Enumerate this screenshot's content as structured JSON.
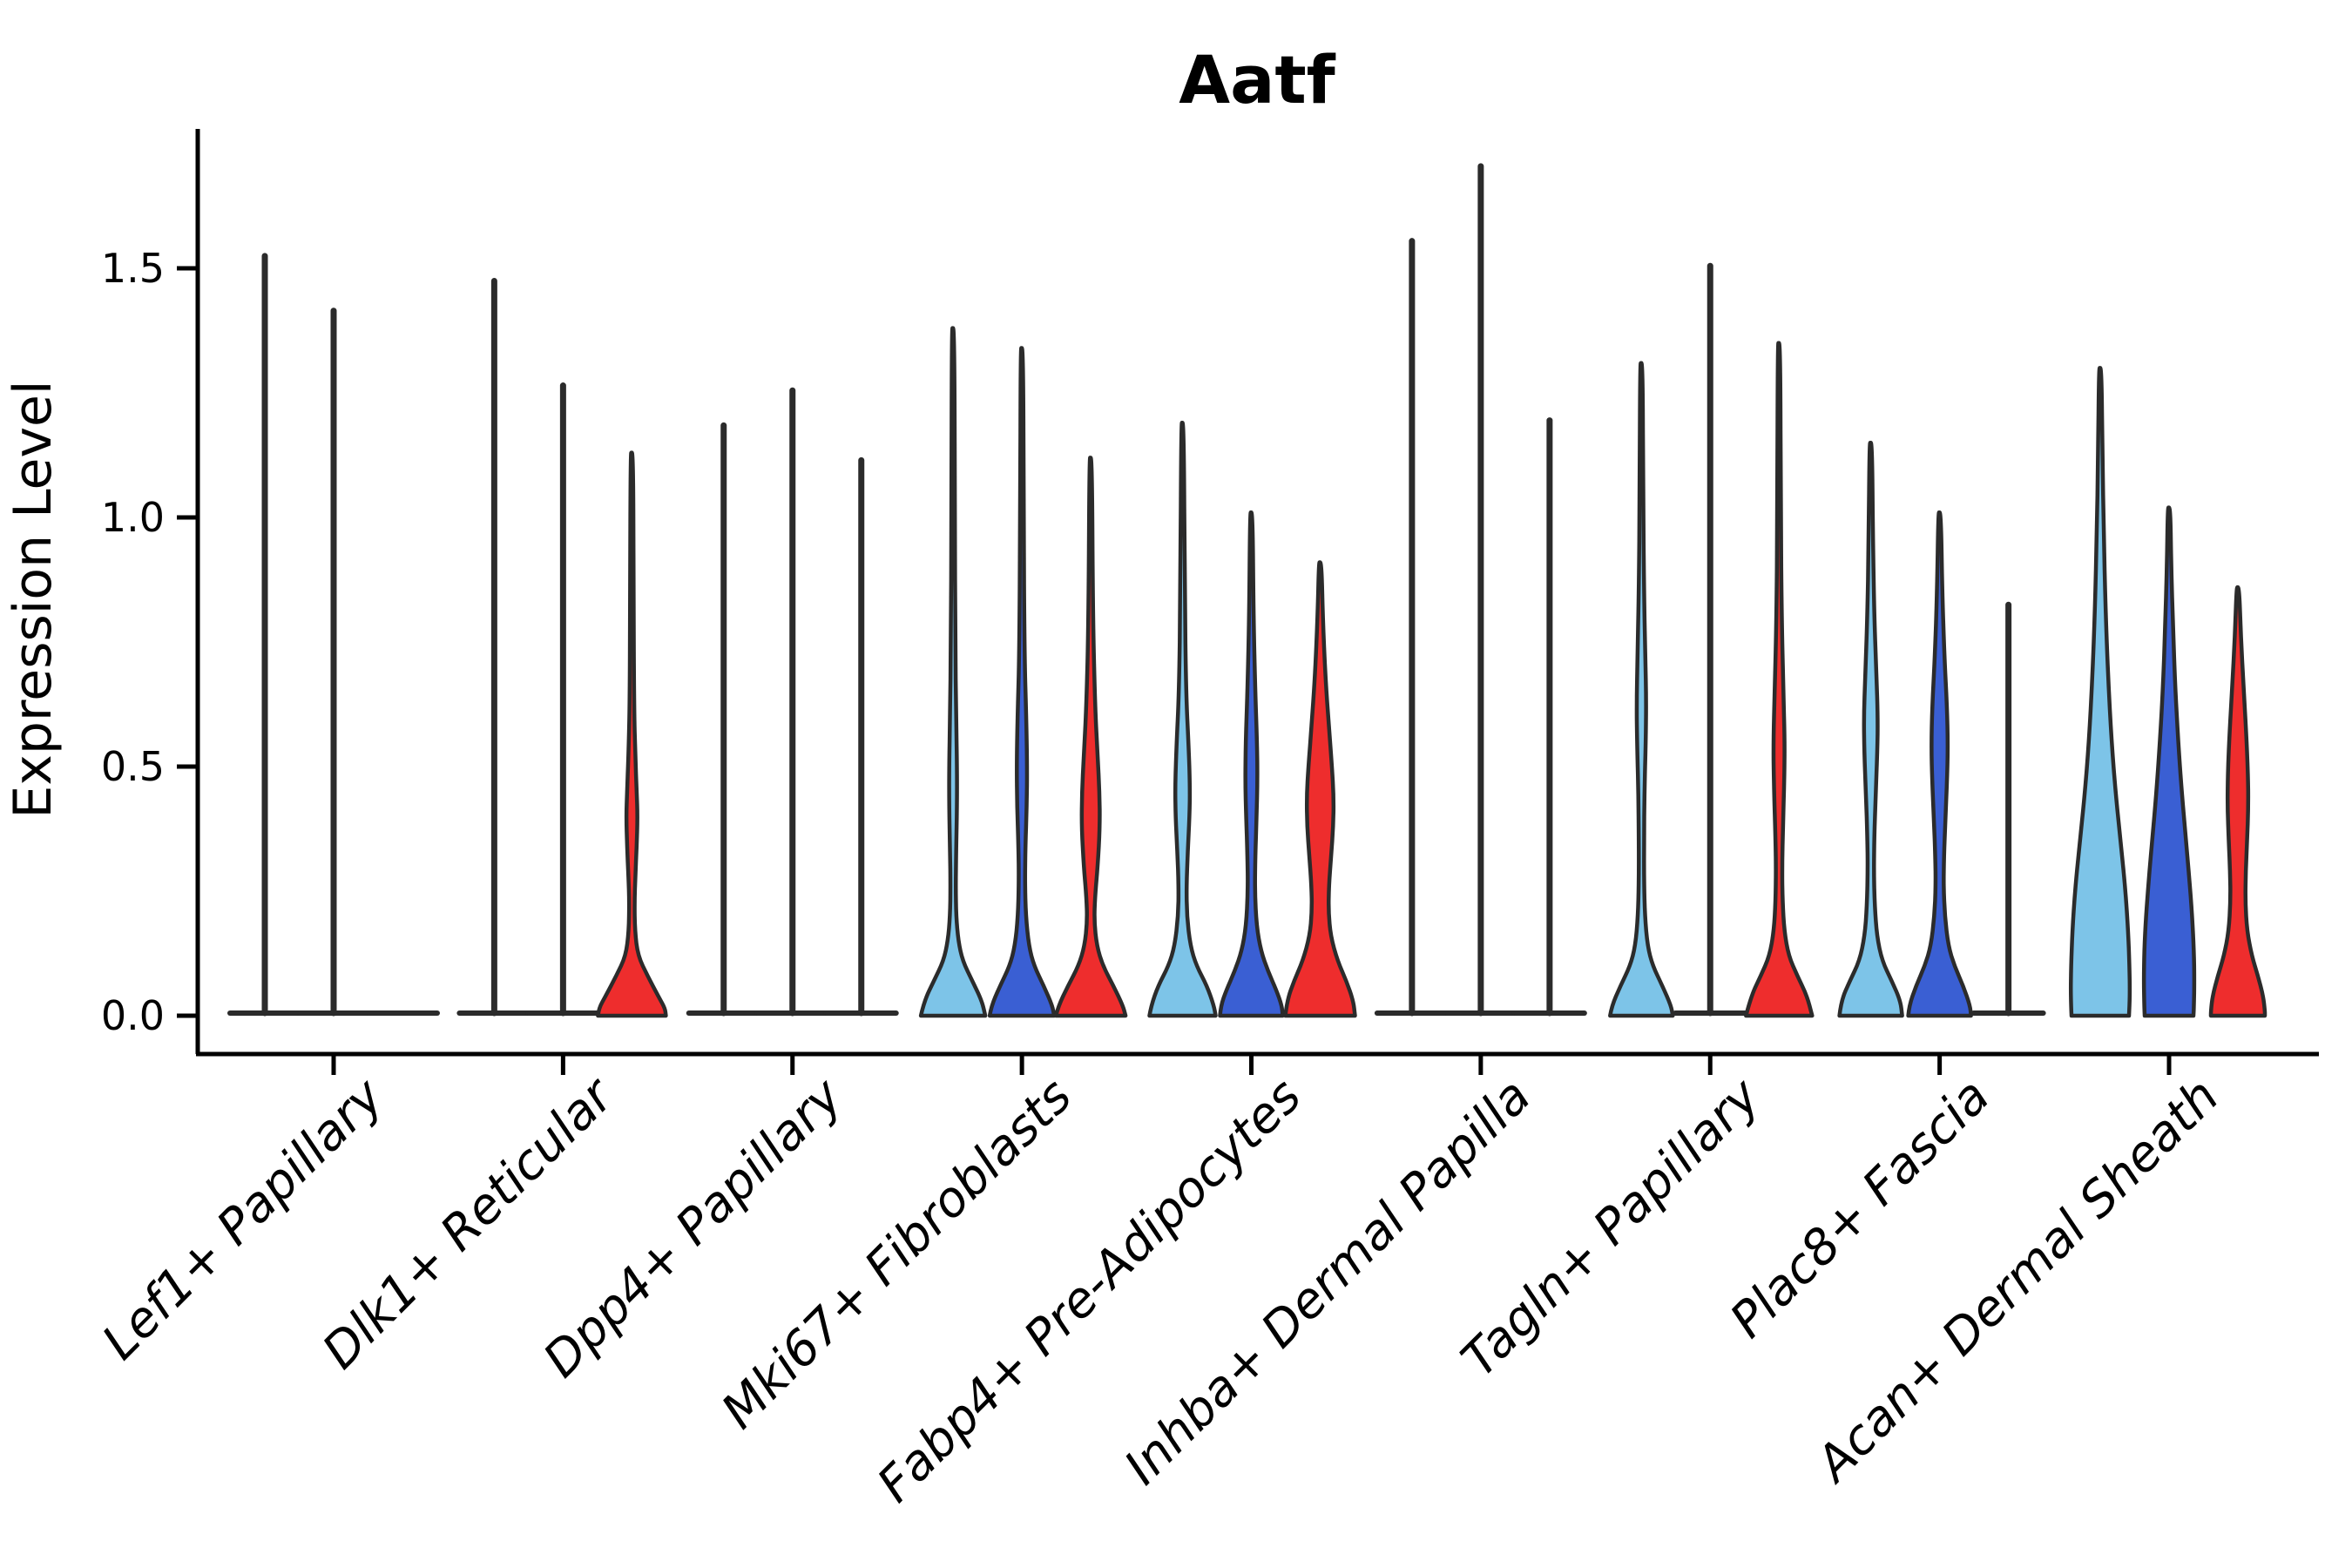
{
  "title": "Aatf",
  "ylabel": "Expression Level",
  "chart_data": {
    "type": "violin",
    "title": "Aatf",
    "xlabel": "",
    "ylabel": "Expression Level",
    "ylim": [
      0,
      1.82
    ],
    "grid": false,
    "legend": "none",
    "yticks": [
      {
        "value": 0.0,
        "label": "0.0"
      },
      {
        "value": 0.5,
        "label": "0.5"
      },
      {
        "value": 1.0,
        "label": "1.0"
      },
      {
        "value": 1.5,
        "label": "1.5"
      }
    ],
    "series_colors": [
      "#7DC4E8",
      "#3A5FD3",
      "#EE2D2D"
    ],
    "outline_color": "#2B2B2B",
    "axis_color": "#000000",
    "categories": [
      "Lef1+ Papillary",
      "Dlk1+ Reticular",
      "Dpp4+ Papillary",
      "Mki67+ Fibroblasts",
      "Fabp4+ Pre-Adipocytes",
      "Inhba+ Dermal Papilla",
      "Tagln+ Papillary",
      "Plac8+ Fascia",
      "Acan+ Dermal Sheath"
    ],
    "groups": [
      {
        "label": "Lef1+ Papillary",
        "violins": [
          {
            "kind": "spike",
            "max": 1.53
          },
          {
            "kind": "spike",
            "max": 1.42
          },
          {
            "kind": "flat",
            "max": 0
          }
        ]
      },
      {
        "label": "Dlk1+ Reticular",
        "violins": [
          {
            "kind": "spike",
            "max": 1.48
          },
          {
            "kind": "spike",
            "max": 1.27
          },
          {
            "kind": "violin",
            "max": 1.13,
            "profile": [
              [
                1.13,
                1.5
              ],
              [
                0.85,
                2
              ],
              [
                0.62,
                2.5
              ],
              [
                0.52,
                4
              ],
              [
                0.45,
                5.5
              ],
              [
                0.4,
                6.5
              ],
              [
                0.34,
                5.5
              ],
              [
                0.28,
                4
              ],
              [
                0.23,
                3
              ],
              [
                0.17,
                3.5
              ],
              [
                0.12,
                7
              ],
              [
                0.08,
                18
              ],
              [
                0.04,
                30
              ],
              [
                0.015,
                38
              ],
              [
                0,
                39
              ]
            ]
          }
        ]
      },
      {
        "label": "Dpp4+ Papillary",
        "violins": [
          {
            "kind": "spike",
            "max": 1.19
          },
          {
            "kind": "spike",
            "max": 1.26
          },
          {
            "kind": "spike",
            "max": 1.12
          }
        ]
      },
      {
        "label": "Mki67+ Fibroblasts",
        "violins": [
          {
            "kind": "violin",
            "max": 1.38,
            "profile": [
              [
                1.38,
                1.5
              ],
              [
                1.0,
                2
              ],
              [
                0.75,
                2.5
              ],
              [
                0.6,
                3.5
              ],
              [
                0.5,
                4.5
              ],
              [
                0.42,
                4.5
              ],
              [
                0.33,
                3.5
              ],
              [
                0.26,
                3
              ],
              [
                0.2,
                3.5
              ],
              [
                0.15,
                6
              ],
              [
                0.11,
                11
              ],
              [
                0.07,
                22
              ],
              [
                0.03,
                33
              ],
              [
                0,
                37
              ]
            ]
          },
          {
            "kind": "violin",
            "max": 1.34,
            "profile": [
              [
                1.34,
                1.5
              ],
              [
                1.0,
                2
              ],
              [
                0.72,
                3
              ],
              [
                0.6,
                5
              ],
              [
                0.5,
                6
              ],
              [
                0.42,
                5.5
              ],
              [
                0.34,
                4
              ],
              [
                0.27,
                3.5
              ],
              [
                0.2,
                4.5
              ],
              [
                0.14,
                8
              ],
              [
                0.1,
                14
              ],
              [
                0.06,
                25
              ],
              [
                0.02,
                35
              ],
              [
                0,
                37
              ]
            ]
          },
          {
            "kind": "violin",
            "max": 1.12,
            "profile": [
              [
                1.12,
                1.5
              ],
              [
                0.8,
                2.5
              ],
              [
                0.62,
                5
              ],
              [
                0.52,
                8
              ],
              [
                0.45,
                10
              ],
              [
                0.38,
                10.5
              ],
              [
                0.3,
                8
              ],
              [
                0.24,
                5
              ],
              [
                0.19,
                4
              ],
              [
                0.14,
                7
              ],
              [
                0.1,
                14
              ],
              [
                0.06,
                26
              ],
              [
                0.02,
                37
              ],
              [
                0,
                40
              ]
            ]
          }
        ]
      },
      {
        "label": "Fabp4+ Pre-Adipocytes",
        "violins": [
          {
            "kind": "violin",
            "max": 1.19,
            "profile": [
              [
                1.19,
                1.5
              ],
              [
                0.85,
                2.5
              ],
              [
                0.65,
                4
              ],
              [
                0.54,
                7
              ],
              [
                0.46,
                8.5
              ],
              [
                0.4,
                8
              ],
              [
                0.33,
                6
              ],
              [
                0.26,
                4.5
              ],
              [
                0.2,
                5
              ],
              [
                0.14,
                9
              ],
              [
                0.1,
                16
              ],
              [
                0.06,
                28
              ],
              [
                0.02,
                36
              ],
              [
                0,
                38
              ]
            ]
          },
          {
            "kind": "violin",
            "max": 1.01,
            "profile": [
              [
                1.01,
                1.5
              ],
              [
                0.8,
                2.5
              ],
              [
                0.65,
                4.5
              ],
              [
                0.55,
                6.5
              ],
              [
                0.47,
                7
              ],
              [
                0.4,
                6
              ],
              [
                0.32,
                4.5
              ],
              [
                0.25,
                4
              ],
              [
                0.18,
                6
              ],
              [
                0.13,
                11
              ],
              [
                0.09,
                19
              ],
              [
                0.05,
                29
              ],
              [
                0.02,
                35
              ],
              [
                0,
                36
              ]
            ]
          },
          {
            "kind": "violin",
            "max": 0.91,
            "profile": [
              [
                0.91,
                1.5
              ],
              [
                0.8,
                3
              ],
              [
                0.68,
                6
              ],
              [
                0.58,
                10
              ],
              [
                0.5,
                13.5
              ],
              [
                0.44,
                15.5
              ],
              [
                0.38,
                15
              ],
              [
                0.32,
                12.5
              ],
              [
                0.26,
                10
              ],
              [
                0.21,
                9.5
              ],
              [
                0.16,
                12
              ],
              [
                0.11,
                20
              ],
              [
                0.07,
                30
              ],
              [
                0.03,
                38
              ],
              [
                0,
                40
              ]
            ]
          }
        ]
      },
      {
        "label": "Inhba+ Dermal Papilla",
        "violins": [
          {
            "kind": "spike",
            "max": 1.56
          },
          {
            "kind": "spike",
            "max": 1.71
          },
          {
            "kind": "spike",
            "max": 1.2
          }
        ]
      },
      {
        "label": "Tagln+ Papillary",
        "violins": [
          {
            "kind": "violin",
            "max": 1.31,
            "profile": [
              [
                1.31,
                1.5
              ],
              [
                1.05,
                2
              ],
              [
                0.85,
                3
              ],
              [
                0.72,
                4.5
              ],
              [
                0.63,
                5.5
              ],
              [
                0.55,
                5
              ],
              [
                0.45,
                3.5
              ],
              [
                0.35,
                3
              ],
              [
                0.27,
                3
              ],
              [
                0.2,
                4
              ],
              [
                0.14,
                7
              ],
              [
                0.1,
                13
              ],
              [
                0.06,
                24
              ],
              [
                0.02,
                34
              ],
              [
                0,
                36
              ]
            ]
          },
          {
            "kind": "spike",
            "max": 1.51
          },
          {
            "kind": "violin",
            "max": 1.35,
            "profile": [
              [
                1.35,
                1.5
              ],
              [
                1.0,
                2
              ],
              [
                0.8,
                3
              ],
              [
                0.65,
                5
              ],
              [
                0.55,
                6.5
              ],
              [
                0.47,
                6
              ],
              [
                0.38,
                4.5
              ],
              [
                0.3,
                3.5
              ],
              [
                0.23,
                4
              ],
              [
                0.17,
                6
              ],
              [
                0.12,
                11
              ],
              [
                0.08,
                21
              ],
              [
                0.04,
                32
              ],
              [
                0,
                38
              ]
            ]
          }
        ]
      },
      {
        "label": "Plac8+ Fascia",
        "violins": [
          {
            "kind": "violin",
            "max": 1.15,
            "profile": [
              [
                1.15,
                1.5
              ],
              [
                0.95,
                2.5
              ],
              [
                0.8,
                4
              ],
              [
                0.68,
                6.5
              ],
              [
                0.6,
                8
              ],
              [
                0.53,
                7.5
              ],
              [
                0.44,
                5.5
              ],
              [
                0.36,
                4
              ],
              [
                0.29,
                3.5
              ],
              [
                0.22,
                4.5
              ],
              [
                0.16,
                7
              ],
              [
                0.11,
                13
              ],
              [
                0.07,
                24
              ],
              [
                0.03,
                34
              ],
              [
                0,
                36
              ]
            ]
          },
          {
            "kind": "violin",
            "max": 1.01,
            "profile": [
              [
                1.01,
                1.5
              ],
              [
                0.85,
                3
              ],
              [
                0.72,
                5.5
              ],
              [
                0.62,
                8.5
              ],
              [
                0.54,
                9.5
              ],
              [
                0.47,
                8.5
              ],
              [
                0.39,
                6.5
              ],
              [
                0.32,
                5
              ],
              [
                0.26,
                4.5
              ],
              [
                0.2,
                6
              ],
              [
                0.14,
                10
              ],
              [
                0.1,
                17
              ],
              [
                0.06,
                27
              ],
              [
                0.02,
                35
              ],
              [
                0,
                36
              ]
            ]
          },
          {
            "kind": "spike",
            "max": 0.83
          }
        ]
      },
      {
        "label": "Acan+ Dermal Sheath",
        "violins": [
          {
            "kind": "violin",
            "max": 1.3,
            "profile": [
              [
                1.3,
                1.5
              ],
              [
                1.12,
                2.5
              ],
              [
                0.97,
                4
              ],
              [
                0.82,
                6
              ],
              [
                0.68,
                9
              ],
              [
                0.55,
                13
              ],
              [
                0.44,
                18
              ],
              [
                0.34,
                24
              ],
              [
                0.25,
                29
              ],
              [
                0.17,
                32
              ],
              [
                0.1,
                33.5
              ],
              [
                0.04,
                34
              ],
              [
                0,
                33
              ]
            ]
          },
          {
            "kind": "violin",
            "max": 1.02,
            "profile": [
              [
                1.02,
                1.5
              ],
              [
                0.9,
                2.5
              ],
              [
                0.78,
                4.5
              ],
              [
                0.66,
                7
              ],
              [
                0.55,
                10.5
              ],
              [
                0.45,
                14.5
              ],
              [
                0.36,
                19
              ],
              [
                0.28,
                23
              ],
              [
                0.2,
                26.5
              ],
              [
                0.13,
                28.5
              ],
              [
                0.07,
                29
              ],
              [
                0.02,
                28.5
              ],
              [
                0,
                28
              ]
            ]
          },
          {
            "kind": "violin",
            "max": 0.86,
            "profile": [
              [
                0.86,
                1.5
              ],
              [
                0.76,
                3.5
              ],
              [
                0.66,
                6.5
              ],
              [
                0.57,
                9.5
              ],
              [
                0.49,
                11.5
              ],
              [
                0.42,
                12
              ],
              [
                0.35,
                10.5
              ],
              [
                0.29,
                9
              ],
              [
                0.23,
                8.5
              ],
              [
                0.17,
                10.5
              ],
              [
                0.12,
                16
              ],
              [
                0.08,
                23
              ],
              [
                0.04,
                29
              ],
              [
                0.01,
                31
              ],
              [
                0,
                31
              ]
            ]
          }
        ]
      }
    ]
  }
}
